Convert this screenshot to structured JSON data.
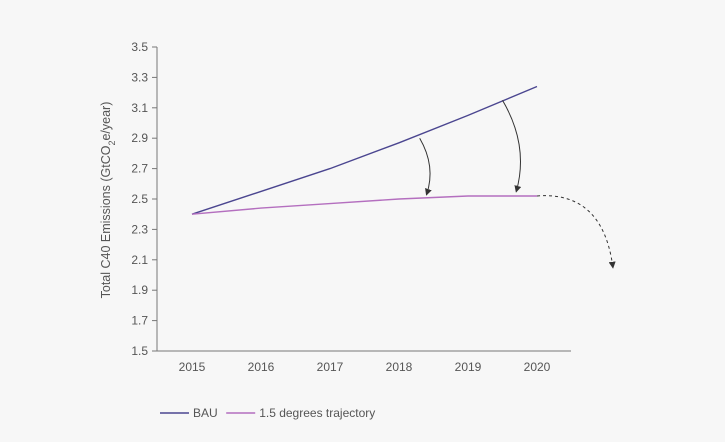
{
  "chart_data": {
    "type": "line",
    "x": [
      2015,
      2016,
      2017,
      2018,
      2019,
      2020
    ],
    "series": [
      {
        "name": "BAU",
        "color": "#4b4690",
        "values": [
          2.4,
          2.55,
          2.7,
          2.87,
          3.05,
          3.24
        ]
      },
      {
        "name": "1.5 degrees trajectory",
        "color": "#b46fbf",
        "values": [
          2.4,
          2.44,
          2.47,
          2.5,
          2.52,
          2.52
        ]
      }
    ],
    "title": "",
    "xlabel": "",
    "ylabel_main": "Total C40 Emissions (GtCO",
    "ylabel_sub": "2",
    "ylabel_tail": "e/year)",
    "ylim": [
      1.5,
      3.5
    ],
    "yticks": [
      "1.5",
      "1.7",
      "1.9",
      "2.1",
      "2.3",
      "2.5",
      "2.7",
      "2.9",
      "3.1",
      "3.3",
      "3.5"
    ],
    "xticks": [
      "2015",
      "2016",
      "2017",
      "2018",
      "2019",
      "2020"
    ],
    "annotations": [
      {
        "kind": "curved-arrow",
        "from": [
          2018.3,
          2.9
        ],
        "to": [
          2018.4,
          2.53
        ]
      },
      {
        "kind": "curved-arrow",
        "from": [
          2019.5,
          3.15
        ],
        "to": [
          2019.7,
          2.55
        ]
      },
      {
        "kind": "dashed-arrow",
        "from": [
          2020,
          2.52
        ],
        "to": [
          2021.1,
          2.05
        ]
      }
    ],
    "grid": false,
    "legend_position": "bottom-left"
  }
}
